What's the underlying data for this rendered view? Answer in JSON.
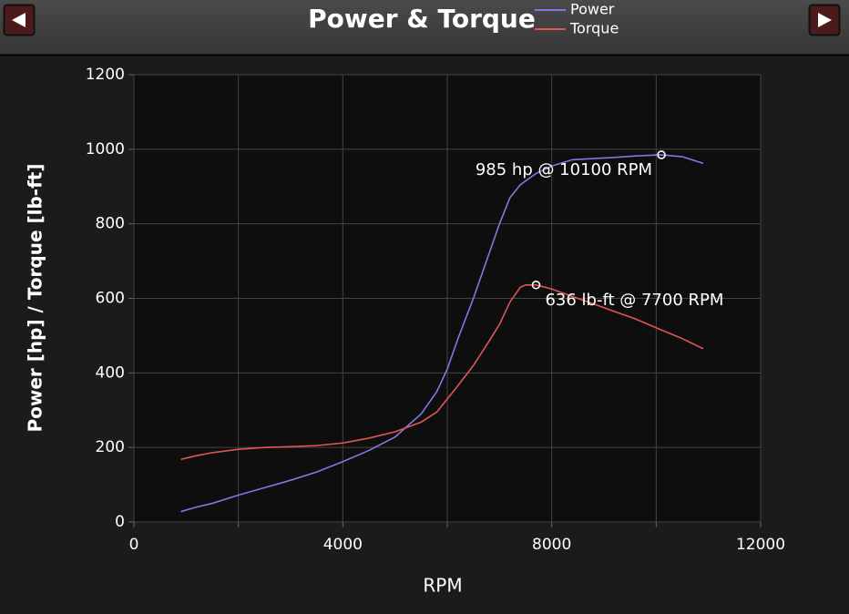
{
  "chart_data": {
    "type": "line",
    "title": "Power & Torque",
    "x_label": "RPM",
    "y_label": "Power [hp] / Torque [lb-ft]",
    "x": [
      900,
      1200,
      1500,
      2000,
      2500,
      3000,
      3500,
      4000,
      4500,
      5000,
      5500,
      5800,
      6000,
      6200,
      6500,
      6800,
      7000,
      7200,
      7400,
      7500,
      7700,
      8000,
      8400,
      8800,
      9200,
      9600,
      10100,
      10500,
      10900
    ],
    "series": [
      {
        "name": "Power",
        "color": "#7b7be2",
        "values": [
          28,
          40,
          50,
          72,
          92,
          112,
          134,
          162,
          192,
          228,
          290,
          350,
          410,
          490,
          600,
          720,
          800,
          870,
          905,
          915,
          935,
          955,
          972,
          975,
          978,
          982,
          985,
          980,
          962
        ]
      },
      {
        "name": "Torque",
        "color": "#e25555",
        "values": [
          168,
          178,
          186,
          195,
          200,
          202,
          205,
          212,
          225,
          242,
          268,
          295,
          330,
          365,
          420,
          485,
          530,
          590,
          630,
          636,
          636,
          625,
          605,
          585,
          565,
          545,
          515,
          492,
          465
        ]
      }
    ],
    "annotations": [
      {
        "text": "985 hp @ 10100 RPM",
        "x": 10100,
        "y": 985
      },
      {
        "text": "636 lb-ft @ 7700 RPM",
        "x": 7700,
        "y": 636
      }
    ],
    "xlim": [
      0,
      12000
    ],
    "xticks": [
      0,
      4000,
      8000,
      12000
    ],
    "xgrid": [
      0,
      2000,
      4000,
      6000,
      8000,
      10000,
      12000
    ],
    "ylim": [
      0,
      1200
    ],
    "yticks": [
      0,
      200,
      400,
      600,
      800,
      1000,
      1200
    ],
    "grid": true,
    "legend": "top"
  }
}
